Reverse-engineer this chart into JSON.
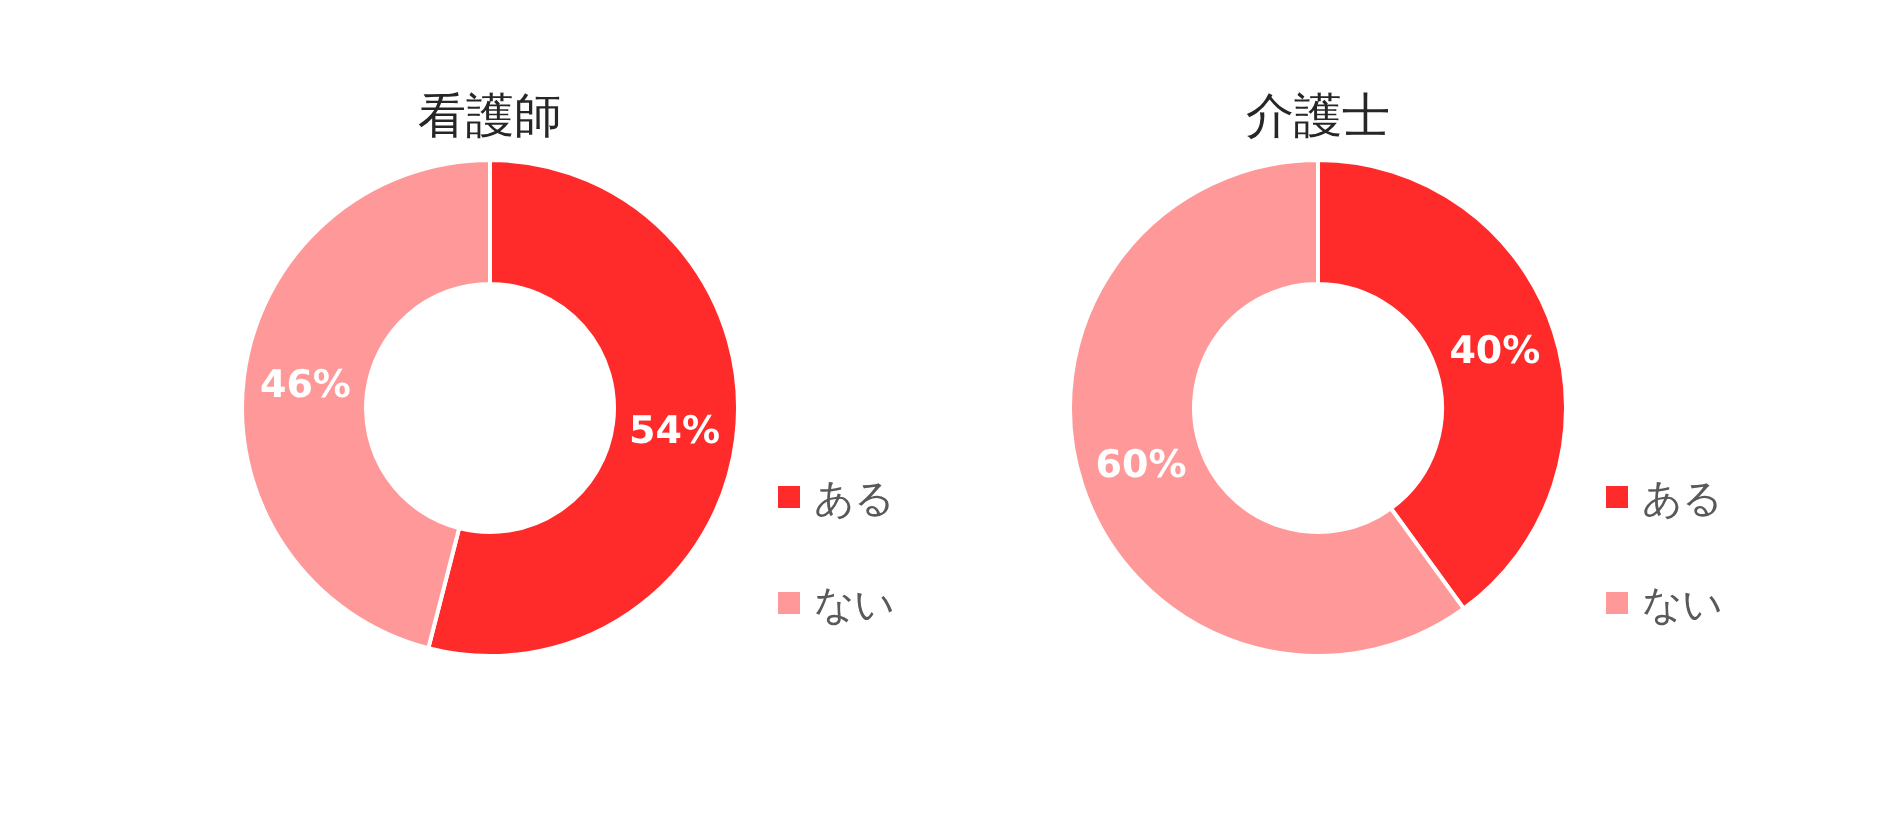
{
  "chart_data": [
    {
      "type": "donut",
      "title": "看護師",
      "categories": [
        "ある",
        "ない"
      ],
      "values": [
        54,
        46
      ],
      "colors": [
        "#ff2b2b",
        "#ff9999"
      ],
      "value_labels": [
        "54%",
        "46%"
      ],
      "legend": "bottom right"
    },
    {
      "type": "donut",
      "title": "介護士",
      "categories": [
        "ある",
        "ない"
      ],
      "values": [
        40,
        60
      ],
      "colors": [
        "#ff2b2b",
        "#ff9999"
      ],
      "value_labels": [
        "40%",
        "60%"
      ],
      "legend": "bottom right"
    }
  ]
}
